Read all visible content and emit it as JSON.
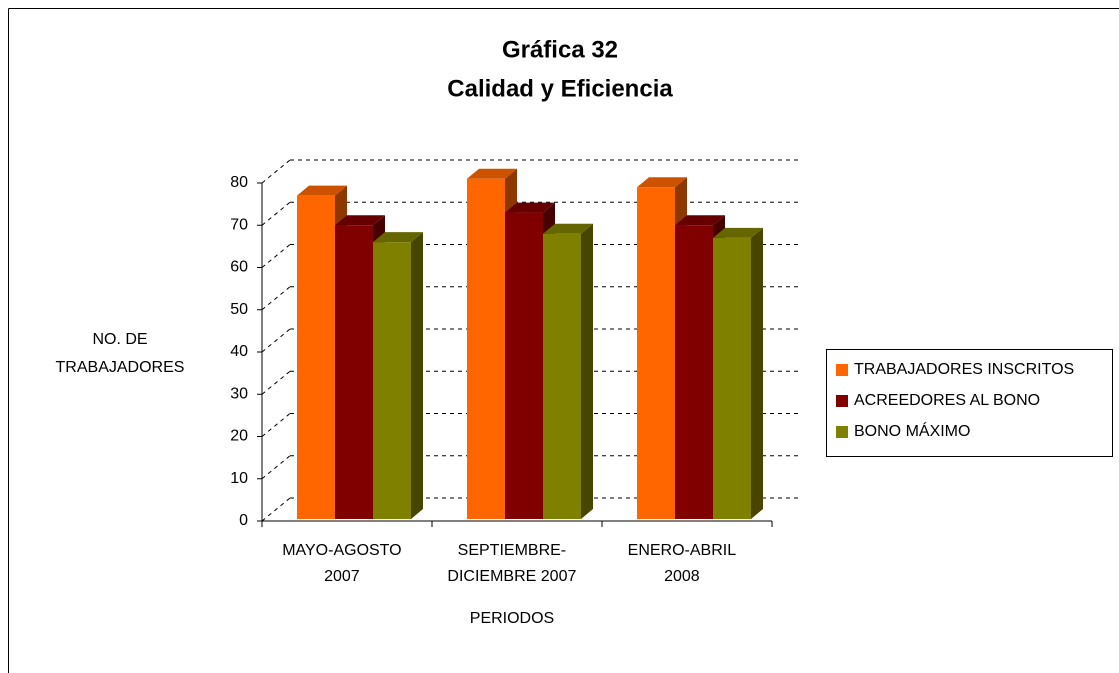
{
  "chart_data": {
    "type": "bar3d",
    "title": [
      "Gráfica 32",
      "Calidad y Eficiencia"
    ],
    "ylabel": [
      "NO. DE",
      "TRABAJADORES"
    ],
    "xlabel": "PERIODOS",
    "categories": [
      [
        "MAYO-AGOSTO",
        "2007"
      ],
      [
        "SEPTIEMBRE-",
        "DICIEMBRE 2007"
      ],
      [
        "ENERO-ABRIL",
        "2008"
      ]
    ],
    "series": [
      {
        "name": "TRABAJADORES INSCRITOS",
        "color": "#ff6600",
        "values": [
          77,
          81,
          79
        ]
      },
      {
        "name": "ACREEDORES AL BONO",
        "color": "#800000",
        "values": [
          70,
          73,
          70
        ]
      },
      {
        "name": "BONO MÁXIMO",
        "color": "#808000",
        "values": [
          66,
          68,
          67
        ]
      }
    ],
    "ylim": [
      0,
      80
    ],
    "yticks": [
      0,
      10,
      20,
      30,
      40,
      50,
      60,
      70,
      80
    ],
    "grid": true,
    "legend": "right"
  }
}
